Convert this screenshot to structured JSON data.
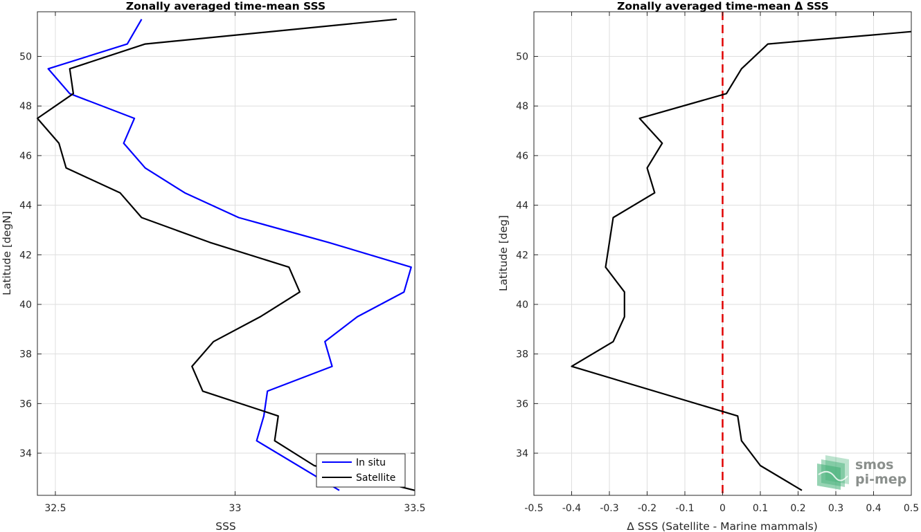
{
  "chart_data": [
    {
      "type": "line",
      "title": "Zonally averaged time-mean SSS",
      "xlabel": "SSS",
      "ylabel": "Latitude [degN]",
      "xlim": [
        32.45,
        33.5
      ],
      "ylim": [
        32.3,
        51.8
      ],
      "xticks": [
        32.5,
        33,
        33.5
      ],
      "xtick_labels": [
        "32.5",
        "33",
        "33.5"
      ],
      "yticks": [
        34,
        36,
        38,
        40,
        42,
        44,
        46,
        48,
        50
      ],
      "ytick_labels": [
        "34",
        "36",
        "38",
        "40",
        "42",
        "44",
        "46",
        "48",
        "50"
      ],
      "grid": true,
      "legend_position": "bottom-right",
      "series": [
        {
          "name": "In situ",
          "color": "#0000ff",
          "points": [
            [
              33.29,
              32.5
            ],
            [
              33.06,
              34.5
            ],
            [
              33.08,
              35.5
            ],
            [
              33.09,
              36.5
            ],
            [
              33.27,
              37.5
            ],
            [
              33.25,
              38.5
            ],
            [
              33.34,
              39.5
            ],
            [
              33.47,
              40.5
            ],
            [
              33.49,
              41.5
            ],
            [
              33.26,
              42.5
            ],
            [
              33.01,
              43.5
            ],
            [
              32.86,
              44.5
            ],
            [
              32.75,
              45.5
            ],
            [
              32.69,
              46.5
            ],
            [
              32.72,
              47.5
            ],
            [
              32.54,
              48.5
            ],
            [
              32.48,
              49.5
            ],
            [
              32.7,
              50.5
            ],
            [
              32.74,
              51.5
            ]
          ]
        },
        {
          "name": "Satellite",
          "color": "#000000",
          "points": [
            [
              33.5,
              32.5
            ],
            [
              33.22,
              33.5
            ],
            [
              33.11,
              34.5
            ],
            [
              33.12,
              35.5
            ],
            [
              32.91,
              36.5
            ],
            [
              32.88,
              37.5
            ],
            [
              32.94,
              38.5
            ],
            [
              33.07,
              39.5
            ],
            [
              33.18,
              40.5
            ],
            [
              33.15,
              41.5
            ],
            [
              32.93,
              42.5
            ],
            [
              32.74,
              43.5
            ],
            [
              32.68,
              44.5
            ],
            [
              32.53,
              45.5
            ],
            [
              32.51,
              46.5
            ],
            [
              32.45,
              47.5
            ],
            [
              32.55,
              48.5
            ],
            [
              32.54,
              49.5
            ],
            [
              32.75,
              50.5
            ],
            [
              33.45,
              51.5
            ]
          ]
        }
      ]
    },
    {
      "type": "line",
      "title": "Zonally averaged time-mean Δ SSS",
      "xlabel": "Δ SSS (Satellite - Marine mammals)",
      "ylabel": "Latitude [deg]",
      "xlim": [
        -0.5,
        0.5
      ],
      "ylim": [
        32.3,
        51.8
      ],
      "xticks": [
        -0.5,
        -0.4,
        -0.3,
        -0.2,
        -0.1,
        0,
        0.1,
        0.2,
        0.3,
        0.4,
        0.5
      ],
      "xtick_labels": [
        "-0.5",
        "-0.4",
        "-0.3",
        "-0.2",
        "-0.1",
        "0",
        "0.1",
        "0.2",
        "0.3",
        "0.4",
        "0.5"
      ],
      "yticks": [
        34,
        36,
        38,
        40,
        42,
        44,
        46,
        48,
        50
      ],
      "ytick_labels": [
        "34",
        "36",
        "38",
        "40",
        "42",
        "44",
        "46",
        "48",
        "50"
      ],
      "grid": true,
      "reference_line": {
        "x": 0,
        "color": "#e00000",
        "style": "dashed"
      },
      "series": [
        {
          "color": "#000000",
          "points": [
            [
              0.21,
              32.5
            ],
            [
              0.1,
              33.5
            ],
            [
              0.05,
              34.5
            ],
            [
              0.04,
              35.5
            ],
            [
              -0.4,
              37.5
            ],
            [
              -0.29,
              38.5
            ],
            [
              -0.26,
              39.5
            ],
            [
              -0.26,
              40.5
            ],
            [
              -0.31,
              41.5
            ],
            [
              -0.3,
              42.5
            ],
            [
              -0.29,
              43.5
            ],
            [
              -0.18,
              44.5
            ],
            [
              -0.2,
              45.5
            ],
            [
              -0.16,
              46.5
            ],
            [
              -0.22,
              47.5
            ],
            [
              0.01,
              48.5
            ],
            [
              0.05,
              49.5
            ],
            [
              0.12,
              50.5
            ],
            [
              0.5,
              51.0
            ]
          ]
        }
      ]
    }
  ],
  "logo": {
    "line1": "smos",
    "line2": "pi-mep",
    "color": "#3fae74"
  }
}
